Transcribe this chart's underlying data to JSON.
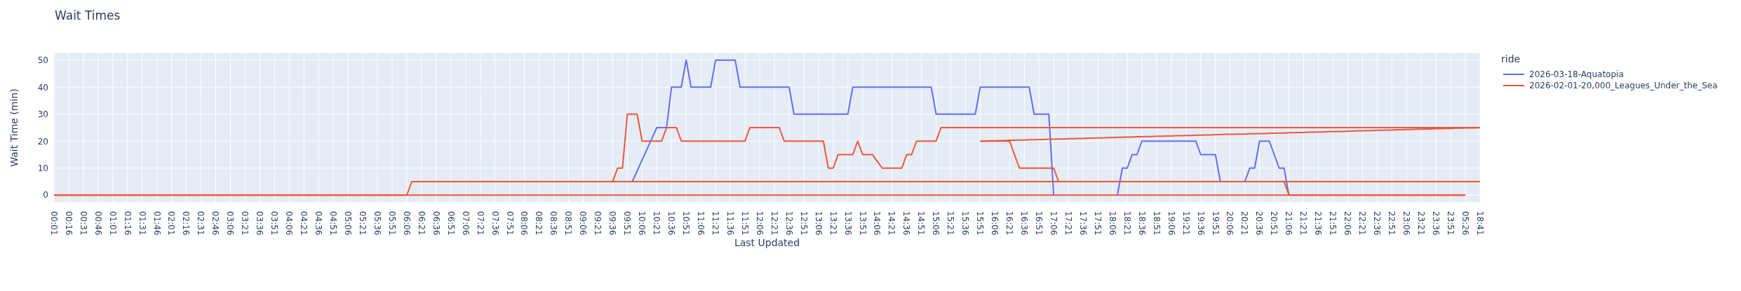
{
  "chart_data": {
    "type": "line",
    "title": "Wait Times",
    "xlabel": "Last Updated",
    "ylabel": "Wait Time (min)",
    "legend_title": "ride",
    "legend": "top right",
    "grid": true,
    "categories": [
      "00:01",
      null,
      null,
      "00:16",
      null,
      null,
      "00:31",
      null,
      null,
      "00:46",
      null,
      null,
      "01:01",
      null,
      null,
      "01:16",
      null,
      null,
      "01:31",
      null,
      null,
      "01:46",
      null,
      null,
      "02:01",
      null,
      null,
      "02:16",
      null,
      null,
      "02:31",
      null,
      null,
      "02:46",
      null,
      null,
      "03:06",
      null,
      null,
      "03:21",
      null,
      null,
      "03:36",
      null,
      null,
      "03:51",
      null,
      null,
      "04:06",
      null,
      null,
      "04:21",
      null,
      null,
      "04:36",
      null,
      null,
      "04:51",
      null,
      null,
      "05:06",
      null,
      null,
      "05:21",
      null,
      null,
      "05:36",
      null,
      null,
      "05:51",
      null,
      null,
      "06:06",
      null,
      null,
      "06:21",
      null,
      null,
      "06:36",
      null,
      null,
      "06:51",
      null,
      null,
      "07:06",
      null,
      null,
      "07:21",
      null,
      null,
      "07:36",
      null,
      null,
      "07:51",
      null,
      null,
      "08:06",
      null,
      null,
      "08:21",
      null,
      null,
      "08:36",
      null,
      null,
      "08:51",
      null,
      null,
      "09:06",
      null,
      null,
      "09:21",
      null,
      null,
      "09:36",
      null,
      null,
      "09:51",
      null,
      null,
      "10:06",
      null,
      null,
      "10:21",
      null,
      null,
      "10:36",
      null,
      null,
      "10:51",
      null,
      null,
      "11:06",
      null,
      null,
      "11:21",
      null,
      null,
      "11:36",
      null,
      null,
      "11:51",
      null,
      null,
      "12:06",
      null,
      null,
      "12:21",
      null,
      null,
      "12:36",
      null,
      null,
      "12:51",
      null,
      null,
      "13:06",
      null,
      null,
      "13:21",
      null,
      null,
      "13:36",
      null,
      null,
      "13:51",
      null,
      null,
      "14:06",
      null,
      null,
      "14:21",
      null,
      null,
      "14:36",
      null,
      null,
      "14:51",
      null,
      null,
      "15:06",
      null,
      null,
      "15:21",
      null,
      null,
      "15:36",
      null,
      null,
      "15:51",
      null,
      null,
      "16:06",
      null,
      null,
      "16:21",
      null,
      null,
      "16:36",
      null,
      null,
      "16:51",
      null,
      null,
      "17:06",
      null,
      null,
      "17:21",
      null,
      null,
      "17:36",
      null,
      null,
      "17:51",
      null,
      null,
      "18:06",
      null,
      null,
      "18:21",
      null,
      null,
      "18:36",
      null,
      null,
      "18:51",
      null,
      null,
      "19:06",
      null,
      null,
      "19:21",
      null,
      null,
      "19:36",
      null,
      null,
      "19:51",
      null,
      null,
      "20:06",
      null,
      null,
      "20:21",
      null,
      null,
      "20:36",
      null,
      null,
      "20:51",
      null,
      null,
      "21:06",
      null,
      null,
      "21:21",
      null,
      null,
      "21:36",
      null,
      null,
      "21:51",
      null,
      null,
      "22:06",
      null,
      null,
      "22:21",
      null,
      null,
      "22:36",
      null,
      null,
      "22:51",
      null,
      null,
      "23:06",
      null,
      null,
      "23:21",
      null,
      null,
      "23:36",
      null,
      null,
      "23:51",
      null,
      null,
      "05:26",
      null,
      null,
      "18:41"
    ],
    "ylim": [
      -2.8,
      52.8
    ],
    "yticks": [
      0,
      10,
      20,
      30,
      40,
      50
    ],
    "series": [
      {
        "name": "2026-03-18-Aquatopia",
        "color": "#636efa",
        "values": [
          null,
          null,
          null,
          null,
          null,
          null,
          null,
          null,
          null,
          null,
          null,
          null,
          null,
          null,
          null,
          null,
          null,
          null,
          null,
          null,
          null,
          null,
          null,
          null,
          null,
          null,
          null,
          null,
          null,
          null,
          null,
          null,
          null,
          null,
          null,
          null,
          null,
          null,
          null,
          null,
          null,
          null,
          null,
          null,
          null,
          null,
          null,
          null,
          null,
          null,
          null,
          null,
          null,
          null,
          null,
          null,
          null,
          null,
          null,
          null,
          null,
          null,
          null,
          null,
          null,
          null,
          null,
          null,
          null,
          null,
          null,
          null,
          null,
          null,
          null,
          null,
          null,
          null,
          null,
          null,
          null,
          null,
          null,
          null,
          null,
          null,
          null,
          null,
          null,
          null,
          null,
          null,
          null,
          null,
          null,
          null,
          null,
          null,
          null,
          null,
          null,
          null,
          null,
          null,
          null,
          null,
          null,
          null,
          null,
          null,
          null,
          null,
          null,
          null,
          null,
          null,
          null,
          null,
          5,
          9,
          13,
          17,
          21,
          25,
          25,
          25,
          40,
          40,
          40,
          50,
          40,
          40,
          40,
          40,
          40,
          50,
          50,
          50,
          50,
          50,
          40,
          40,
          40,
          40,
          40,
          40,
          40,
          40,
          40,
          40,
          40,
          30,
          30,
          30,
          30,
          30,
          30,
          30,
          30,
          30,
          30,
          30,
          30,
          40,
          40,
          40,
          40,
          40,
          40,
          40,
          40,
          40,
          40,
          40,
          40,
          40,
          40,
          40,
          40,
          40,
          30,
          30,
          30,
          30,
          30,
          30,
          30,
          30,
          30,
          40,
          40,
          40,
          40,
          40,
          40,
          40,
          40,
          40,
          40,
          40,
          30,
          30,
          30,
          30,
          0,
          null,
          null,
          null,
          null,
          null,
          null,
          null,
          null,
          null,
          null,
          null,
          null,
          0,
          10,
          10,
          15,
          15,
          20,
          20,
          20,
          20,
          20,
          20,
          20,
          20,
          20,
          20,
          20,
          20,
          15,
          15,
          15,
          15,
          5,
          null,
          null,
          null,
          null,
          5,
          10,
          10,
          20,
          20,
          20,
          15,
          10,
          10,
          0,
          null,
          null,
          null,
          null,
          null,
          null,
          null,
          null,
          null,
          null,
          null,
          null,
          null,
          null,
          null,
          null,
          null,
          null,
          null,
          null,
          null,
          null,
          null,
          null,
          null,
          null,
          null,
          null,
          null,
          null,
          null,
          null,
          null,
          null,
          null,
          null,
          null,
          null,
          null
        ]
      },
      {
        "name": "2026-02-01-20,000_Leagues_Under_the_Sea",
        "color": "#ef553b",
        "values": [
          0,
          0,
          0,
          0,
          0,
          0,
          0,
          0,
          0,
          0,
          0,
          0,
          0,
          0,
          0,
          0,
          0,
          0,
          0,
          0,
          0,
          0,
          0,
          0,
          0,
          0,
          0,
          0,
          0,
          0,
          0,
          0,
          0,
          0,
          0,
          0,
          0,
          0,
          0,
          0,
          0,
          0,
          0,
          0,
          0,
          0,
          0,
          0,
          0,
          0,
          0,
          0,
          0,
          0,
          0,
          0,
          0,
          0,
          0,
          0,
          0,
          0,
          0,
          0,
          0,
          0,
          0,
          0,
          0,
          0,
          0,
          0,
          0,
          5,
          5,
          5,
          5,
          5,
          5,
          5,
          5,
          5,
          5,
          5,
          5,
          5,
          5,
          5,
          5,
          5,
          5,
          5,
          5,
          5,
          5,
          5,
          5,
          5,
          5,
          5,
          5,
          5,
          5,
          5,
          5,
          5,
          5,
          5,
          5,
          5,
          5,
          5,
          5,
          5,
          5,
          10,
          10,
          30,
          30,
          30,
          20,
          20,
          20,
          20,
          20,
          25,
          25,
          25,
          20,
          20,
          20,
          20,
          20,
          20,
          20,
          20,
          20,
          20,
          20,
          20,
          20,
          20,
          25,
          25,
          25,
          25,
          25,
          25,
          25,
          20,
          20,
          20,
          20,
          20,
          20,
          20,
          20,
          20,
          10,
          10,
          15,
          15,
          15,
          15,
          20,
          15,
          15,
          15,
          12.5,
          10,
          10,
          10,
          10,
          10,
          15,
          15,
          20,
          20,
          20,
          20,
          20,
          25,
          25,
          25,
          25,
          25,
          25,
          25,
          25,
          25,
          25,
          25,
          25,
          25,
          25,
          25,
          25,
          25,
          25,
          25,
          25,
          25,
          25,
          25,
          25,
          25,
          25,
          25,
          25,
          25,
          25,
          25,
          25,
          25,
          25,
          25,
          25,
          25,
          25,
          25,
          25,
          25,
          25,
          25,
          25,
          25,
          25,
          25,
          25,
          25,
          25,
          25,
          25,
          25,
          25,
          25,
          25,
          25,
          25,
          25,
          25,
          25,
          25,
          25,
          25,
          25,
          25,
          25,
          25,
          25,
          25,
          25,
          25,
          25,
          25,
          25,
          25,
          25,
          25,
          25,
          25,
          25,
          25,
          25,
          25,
          25,
          25,
          25,
          25,
          25,
          25,
          25,
          25,
          25,
          25,
          25,
          25,
          25,
          25,
          25,
          25,
          25,
          25,
          25,
          25,
          25,
          25,
          25,
          25,
          25,
          25,
          25
        ]
      },
      {
        "color": "#ef553b",
        "values": [
          null,
          null,
          null,
          null,
          null,
          null,
          null,
          null,
          null,
          null,
          null,
          null,
          null,
          null,
          null,
          null,
          null,
          null,
          null,
          null,
          null,
          null,
          null,
          null,
          null,
          null,
          null,
          null,
          null,
          null,
          null,
          null,
          null,
          null,
          null,
          null,
          null,
          null,
          null,
          null,
          null,
          null,
          null,
          null,
          null,
          null,
          null,
          null,
          null,
          null,
          null,
          null,
          null,
          null,
          null,
          null,
          null,
          null,
          null,
          null,
          null,
          null,
          null,
          null,
          null,
          null,
          null,
          null,
          null,
          null,
          null,
          null,
          null,
          null,
          null,
          null,
          null,
          null,
          null,
          null,
          null,
          null,
          null,
          null,
          null,
          null,
          null,
          null,
          null,
          null,
          null,
          null,
          null,
          null,
          null,
          null,
          null,
          null,
          null,
          null,
          null,
          null,
          null,
          null,
          null,
          null,
          null,
          null,
          null,
          null,
          null,
          null,
          null,
          null,
          null,
          null,
          null,
          null,
          null,
          null,
          null,
          null,
          null,
          null,
          null,
          null,
          null,
          null,
          null,
          null,
          null,
          null,
          null,
          null,
          null,
          null,
          null,
          null,
          null,
          null,
          null,
          null,
          null,
          null,
          null,
          null,
          null,
          null,
          null,
          null,
          null,
          null,
          null,
          null,
          null,
          null,
          null,
          null,
          null,
          null,
          null,
          null,
          null,
          null,
          null,
          null,
          null,
          null,
          null,
          null,
          null,
          null,
          null,
          null,
          null,
          null,
          null,
          null,
          null,
          null,
          null,
          null,
          null,
          null,
          null,
          null,
          null,
          null,
          null,
          20,
          20,
          20,
          20,
          20,
          20,
          20,
          15,
          10,
          10,
          10,
          10,
          10,
          10,
          10,
          10,
          5,
          5,
          5,
          5,
          5,
          5,
          5,
          5,
          5,
          5,
          5,
          5,
          5,
          5,
          5,
          5,
          5,
          5,
          5,
          5,
          5,
          5,
          5,
          5,
          5,
          5,
          5,
          5,
          5,
          5,
          5,
          5,
          5,
          5,
          5,
          5,
          5,
          5,
          5,
          5,
          5,
          5,
          5,
          5,
          5,
          5,
          5,
          0,
          0,
          0,
          0,
          0,
          0,
          0,
          0,
          0,
          0,
          0,
          0,
          0,
          0,
          0,
          0,
          0,
          0,
          0,
          0,
          0,
          0,
          0,
          0,
          0,
          0,
          0,
          0,
          0,
          0,
          0,
          0,
          0,
          0,
          0,
          0,
          0,
          null,
          null,
          null
        ]
      },
      {
        "color": "#ef553b",
        "values": [
          null,
          null,
          null,
          null,
          null,
          null,
          null,
          null,
          null,
          null,
          null,
          null,
          null,
          null,
          null,
          null,
          null,
          null,
          null,
          null,
          null,
          null,
          null,
          null,
          null,
          null,
          null,
          null,
          null,
          null,
          null,
          null,
          null,
          null,
          null,
          null,
          null,
          null,
          null,
          null,
          null,
          null,
          null,
          null,
          null,
          null,
          null,
          null,
          null,
          null,
          null,
          null,
          null,
          null,
          null,
          null,
          null,
          null,
          null,
          null,
          null,
          null,
          null,
          null,
          null,
          null,
          null,
          null,
          null,
          null,
          null,
          null,
          null,
          null,
          null,
          null,
          null,
          null,
          null,
          null,
          null,
          null,
          null,
          null,
          null,
          null,
          null,
          null,
          null,
          null,
          null,
          null,
          null,
          null,
          null,
          null,
          null,
          null,
          null,
          null,
          null,
          null,
          null,
          null,
          null,
          null,
          null,
          null,
          null,
          null,
          null,
          null,
          null,
          null,
          null,
          null,
          null,
          null,
          null,
          null,
          null,
          null,
          null,
          null,
          null,
          null,
          null,
          null,
          null,
          null,
          null,
          null,
          null,
          null,
          null,
          null,
          null,
          null,
          null,
          null,
          null,
          null,
          null,
          null,
          null,
          null,
          null,
          null,
          null,
          null,
          null,
          null,
          null,
          null,
          null,
          null,
          null,
          null,
          null,
          null,
          null,
          null,
          null,
          null,
          null,
          null,
          null,
          null,
          null,
          null,
          null,
          null,
          null,
          null,
          null,
          null,
          null,
          null,
          null,
          null,
          null,
          null,
          null,
          null,
          null,
          null,
          null,
          null,
          null,
          20.0,
          20.0,
          20.1,
          20.1,
          20.2,
          20.2,
          20.3,
          20.3,
          20.4,
          20.4,
          20.5,
          20.5,
          20.6,
          20.6,
          20.7,
          20.7,
          20.8,
          20.8,
          20.9,
          20.9,
          21.0,
          21.0,
          21.1,
          21.1,
          21.2,
          21.2,
          21.3,
          21.3,
          21.4,
          21.4,
          21.5,
          21.5,
          21.6,
          21.6,
          21.7,
          21.7,
          21.8,
          21.8,
          21.9,
          21.9,
          22.0,
          22.0,
          22.1,
          22.1,
          22.2,
          22.2,
          22.3,
          22.3,
          22.4,
          22.4,
          22.5,
          22.5,
          22.5,
          22.6,
          22.6,
          22.7,
          22.7,
          22.8,
          22.8,
          22.9,
          22.9,
          23.0,
          23.0,
          23.1,
          23.1,
          23.2,
          23.2,
          23.3,
          23.3,
          23.4,
          23.4,
          23.5,
          23.5,
          23.6,
          23.6,
          23.7,
          23.7,
          23.8,
          23.8,
          23.9,
          23.9,
          24.0,
          24.0,
          24.1,
          24.1,
          24.2,
          24.2,
          24.3,
          24.3,
          24.4,
          24.4,
          24.5,
          24.5,
          24.6,
          24.6,
          24.7,
          24.7,
          24.8,
          24.8,
          24.9,
          24.9,
          24.9,
          25.0
        ]
      },
      {
        "color": "#ef553b",
        "values": [
          null,
          null,
          null,
          null,
          null,
          null,
          null,
          null,
          null,
          null,
          null,
          null,
          null,
          null,
          null,
          null,
          null,
          null,
          null,
          null,
          null,
          null,
          null,
          null,
          null,
          null,
          null,
          null,
          null,
          null,
          null,
          null,
          null,
          null,
          null,
          null,
          null,
          null,
          null,
          null,
          null,
          null,
          null,
          null,
          null,
          null,
          null,
          null,
          null,
          null,
          null,
          null,
          null,
          null,
          null,
          null,
          null,
          null,
          null,
          null,
          null,
          null,
          null,
          null,
          null,
          null,
          null,
          null,
          null,
          null,
          null,
          null,
          null,
          5,
          5,
          5,
          5,
          5,
          5,
          5,
          5,
          5,
          5,
          5,
          5,
          5,
          5,
          5,
          5,
          5,
          5,
          5,
          5,
          5,
          5,
          5,
          5,
          5,
          5,
          5,
          5,
          5,
          5,
          5,
          5,
          5,
          5,
          5,
          5,
          5,
          5,
          5,
          5,
          5,
          5,
          5,
          5,
          5,
          5,
          5,
          5,
          5,
          5,
          5,
          5,
          5,
          5,
          5,
          5,
          5,
          5,
          5,
          5,
          5,
          5,
          5,
          5,
          5,
          5,
          5,
          5,
          5,
          5,
          5,
          5,
          5,
          5,
          5,
          5,
          5,
          5,
          5,
          5,
          5,
          5,
          5,
          5,
          5,
          5,
          5,
          5,
          5,
          5,
          5,
          5,
          5,
          5,
          5,
          5,
          5,
          5,
          5,
          5,
          5,
          5,
          5,
          5,
          5,
          5,
          5,
          5,
          5,
          5,
          5,
          5,
          5,
          5,
          5,
          5,
          5,
          5,
          5,
          5,
          5,
          5,
          5,
          5,
          5,
          5,
          5,
          5,
          5,
          5,
          5,
          5,
          5,
          5,
          5,
          5,
          5,
          5,
          5,
          5,
          5,
          5,
          5,
          5,
          5,
          5,
          5,
          5,
          5,
          5,
          5,
          5,
          5,
          5,
          5,
          5,
          5,
          5,
          5,
          5,
          5,
          5,
          5,
          5,
          5,
          5,
          5,
          5,
          5,
          5,
          5,
          5,
          5,
          5,
          5,
          5,
          5,
          5,
          5,
          5,
          5,
          5,
          5,
          5,
          5,
          5,
          5,
          5,
          5,
          5,
          5,
          5,
          5,
          5,
          5,
          5,
          5,
          5,
          5,
          5,
          5,
          5,
          5,
          5,
          5,
          5,
          5,
          5,
          5,
          5,
          5,
          5,
          5,
          5,
          5,
          5,
          5,
          5,
          5
        ]
      },
      {
        "color": "#ef553b",
        "values": [
          0,
          0,
          0,
          0,
          0,
          0,
          0,
          0,
          0,
          0,
          0,
          0,
          0,
          0,
          0,
          0,
          0,
          0,
          0,
          0,
          0,
          0,
          0,
          0,
          0,
          0,
          0,
          0,
          0,
          0,
          0,
          0,
          0,
          0,
          0,
          0,
          0,
          0,
          0,
          0,
          0,
          0,
          0,
          0,
          0,
          0,
          0,
          0,
          0,
          0,
          0,
          0,
          0,
          0,
          0,
          0,
          0,
          0,
          0,
          0,
          0,
          0,
          0,
          0,
          0,
          0,
          0,
          0,
          0,
          0,
          0,
          0,
          0,
          0,
          0,
          0,
          0,
          0,
          0,
          0,
          0,
          0,
          0,
          0,
          0,
          0,
          0,
          0,
          0,
          0,
          0,
          0,
          0,
          0,
          0,
          0,
          0,
          0,
          0,
          0,
          0,
          0,
          0,
          0,
          0,
          0,
          0,
          0,
          0,
          0,
          0,
          0,
          0,
          0,
          0,
          0,
          0,
          0,
          0,
          0,
          0,
          0,
          0,
          0,
          0,
          0,
          0,
          0,
          0,
          0,
          0,
          0,
          0,
          0,
          0,
          0,
          0,
          0,
          0,
          0,
          0,
          0,
          0,
          0,
          0,
          0,
          0,
          0,
          0,
          0,
          0,
          0,
          0,
          0,
          0,
          0,
          0,
          0,
          0,
          0,
          0,
          0,
          0,
          0,
          0,
          0,
          0,
          0,
          0,
          0,
          0,
          0,
          0,
          0,
          0,
          0,
          0,
          0,
          0,
          0,
          0,
          0,
          0,
          0,
          0,
          0,
          0,
          0,
          0,
          0,
          0,
          0,
          0,
          0,
          0,
          0,
          0,
          0,
          0,
          0,
          0,
          0,
          0,
          0,
          0,
          0,
          0,
          0,
          0,
          0,
          0,
          0,
          0,
          0,
          0,
          0,
          0,
          0,
          0,
          0,
          0,
          0,
          0,
          0,
          0,
          0,
          0,
          0,
          0,
          0,
          0,
          0,
          0,
          0,
          0,
          0,
          0,
          0,
          0,
          0,
          0,
          0,
          0,
          0,
          0,
          0,
          0,
          0,
          0,
          0,
          0,
          0,
          0,
          0,
          0,
          0,
          0,
          0,
          0,
          0,
          0,
          0,
          0,
          0,
          0,
          0,
          0,
          0,
          0,
          0,
          0,
          0,
          0,
          0,
          0,
          0,
          0,
          0,
          0,
          0,
          0,
          0,
          0,
          0,
          0,
          0,
          0,
          0,
          0,
          null,
          null,
          null
        ]
      }
    ]
  }
}
